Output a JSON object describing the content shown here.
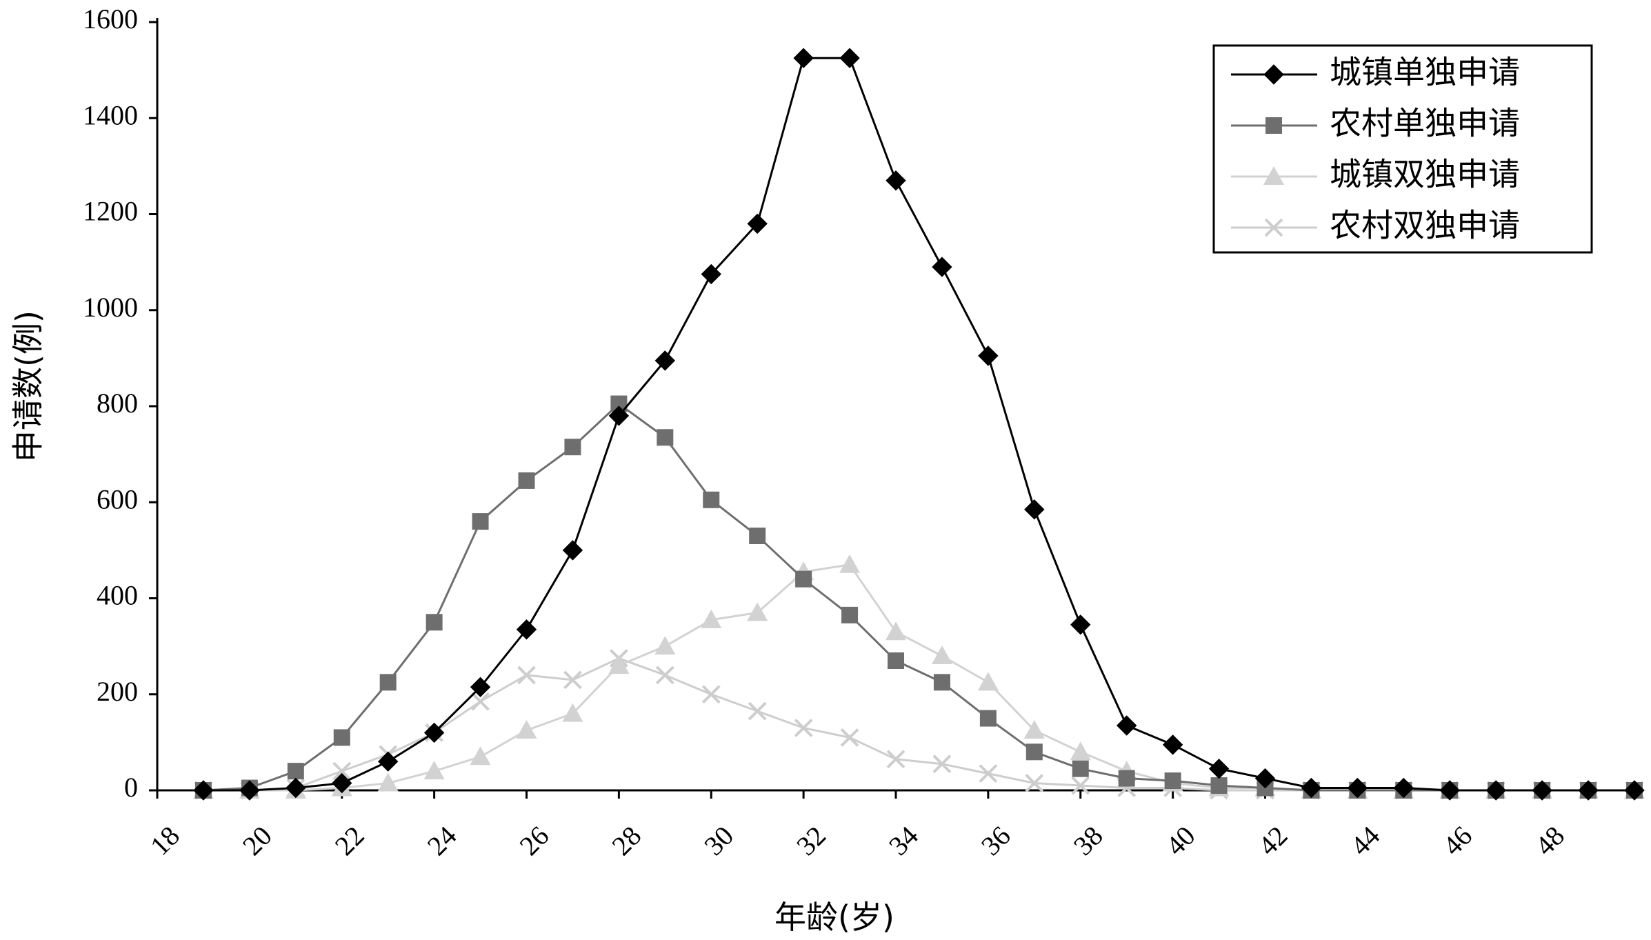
{
  "chart_data": {
    "type": "line",
    "title": "",
    "xlabel": "年龄(岁)",
    "ylabel": "申请数(例)",
    "xlim": [
      18,
      50
    ],
    "ylim": [
      0,
      1600
    ],
    "x_ticks": [
      18,
      20,
      22,
      24,
      26,
      28,
      30,
      32,
      34,
      36,
      38,
      40,
      42,
      44,
      46,
      48
    ],
    "y_ticks": [
      0,
      200,
      400,
      600,
      800,
      1000,
      1200,
      1400,
      1600
    ],
    "legend_position": "top-right",
    "grid": false,
    "x": [
      19,
      20,
      21,
      22,
      23,
      24,
      25,
      26,
      27,
      28,
      29,
      30,
      31,
      32,
      33,
      34,
      35,
      36,
      37,
      38,
      39,
      40,
      41,
      42,
      43,
      44,
      45,
      46,
      47,
      48,
      49,
      50
    ],
    "series": [
      {
        "name": "城镇单独申请",
        "color": "#000000",
        "marker": "diamond",
        "values": [
          0,
          0,
          5,
          15,
          60,
          120,
          215,
          335,
          500,
          780,
          895,
          1075,
          1180,
          1525,
          1525,
          1270,
          1090,
          905,
          585,
          345,
          135,
          95,
          45,
          25,
          5,
          5,
          5,
          0,
          0,
          0,
          0,
          0
        ]
      },
      {
        "name": "农村单独申请",
        "color": "#6e6e6e",
        "marker": "square",
        "values": [
          0,
          5,
          40,
          110,
          225,
          350,
          560,
          645,
          715,
          805,
          735,
          605,
          530,
          440,
          365,
          270,
          225,
          150,
          80,
          45,
          25,
          20,
          10,
          5,
          0,
          0,
          0,
          0,
          0,
          0,
          0,
          0
        ]
      },
      {
        "name": "城镇双独申请",
        "color": "#d2d2d2",
        "marker": "triangle",
        "values": [
          0,
          0,
          0,
          5,
          15,
          40,
          70,
          125,
          160,
          260,
          300,
          355,
          370,
          455,
          470,
          330,
          280,
          225,
          125,
          80,
          40,
          15,
          5,
          5,
          0,
          0,
          0,
          0,
          0,
          0,
          0,
          0
        ]
      },
      {
        "name": "农村双独申请",
        "color": "#cdcdcd",
        "marker": "x",
        "values": [
          0,
          0,
          5,
          40,
          75,
          120,
          185,
          240,
          230,
          275,
          240,
          200,
          165,
          130,
          110,
          65,
          55,
          35,
          15,
          10,
          5,
          5,
          0,
          0,
          0,
          0,
          0,
          0,
          0,
          0,
          0,
          0
        ]
      }
    ]
  }
}
